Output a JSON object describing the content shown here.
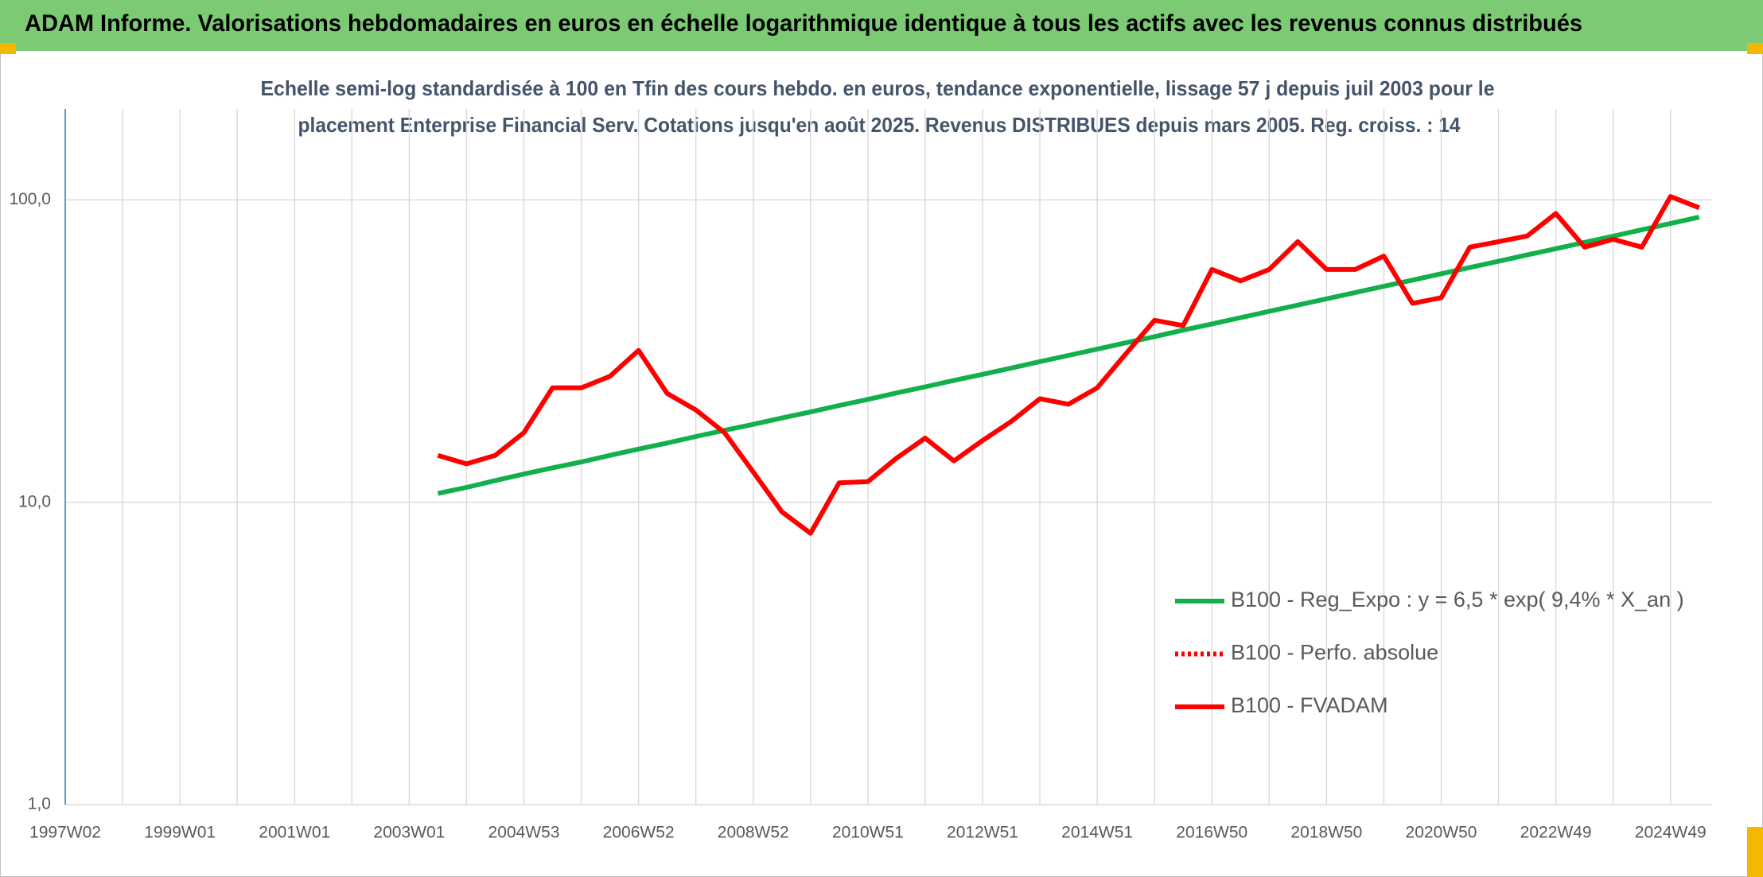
{
  "chart_data": {
    "type": "line",
    "title": "ADAM Informe. Valorisations hebdomadaires en euros en échelle logarithmique identique à tous les actifs avec les revenus connus distribués",
    "subtitle": [
      "Echelle semi-log standardisée à 100 en Tfin des cours hebdo. en euros, tendance exponentielle, lissage 57 j depuis juil 2003 pour le",
      "placement Enterprise Financial Serv. Cotations jusqu'en août 2025. Revenus DISTRIBUES depuis mars 2005. Reg. croiss. : 14"
    ],
    "categories": [
      "1997W02",
      null,
      null,
      null,
      "1999W01",
      null,
      null,
      null,
      "2001W01",
      null,
      null,
      null,
      "2003W01",
      null,
      null,
      null,
      "2004W53",
      null,
      null,
      null,
      "2006W52",
      null,
      null,
      null,
      "2008W52",
      null,
      null,
      null,
      "2010W51",
      null,
      null,
      null,
      "2012W51",
      null,
      null,
      null,
      "2014W51",
      null,
      null,
      null,
      "2016W50",
      null,
      null,
      null,
      "2018W50",
      null,
      null,
      null,
      "2020W50",
      null,
      null,
      null,
      "2022W49",
      null,
      null,
      null,
      "2024W49",
      null
    ],
    "ylim": [
      1,
      200
    ],
    "yticks": [
      {
        "value": 1,
        "label": "1,0"
      },
      {
        "value": 10,
        "label": "10,0"
      },
      {
        "value": 100,
        "label": "100,0"
      }
    ],
    "log_scale": true,
    "grid": true,
    "legend": "right",
    "series": [
      {
        "name": "B100 - Reg_Expo : y = 6,5 * exp( 9,4% *  X_an )",
        "color": "#12b04b",
        "style": "solid",
        "values": [
          null,
          null,
          null,
          null,
          null,
          null,
          null,
          null,
          null,
          null,
          null,
          null,
          null,
          10.7,
          11.2,
          11.8,
          12.4,
          13.0,
          13.6,
          14.3,
          15.0,
          15.7,
          16.5,
          17.3,
          18.1,
          19.0,
          19.9,
          20.9,
          21.9,
          23.0,
          24.1,
          25.3,
          26.5,
          27.8,
          29.2,
          30.6,
          32.1,
          33.7,
          35.3,
          37.1,
          38.9,
          40.8,
          42.8,
          44.9,
          47.1,
          49.4,
          51.8,
          54.3,
          57.0,
          59.8,
          62.7,
          65.8,
          69.0,
          72.4,
          75.9,
          79.7,
          83.6,
          87.7
        ]
      },
      {
        "name": "B100 - Perfo. absolue",
        "color": "#ff0000",
        "style": "dotted",
        "values": [
          null,
          null,
          null,
          null,
          null,
          null,
          null,
          null,
          null,
          null,
          null,
          null,
          null,
          null,
          null,
          null,
          null,
          null,
          null,
          null,
          null,
          null,
          null,
          null,
          null,
          null,
          null,
          null,
          null,
          null,
          null,
          null,
          null,
          null,
          null,
          null,
          null,
          null,
          null,
          null,
          null,
          null,
          null,
          null,
          null,
          null,
          null,
          null,
          null,
          null,
          null,
          null,
          null,
          null,
          null,
          null,
          null,
          null
        ]
      },
      {
        "name": "B100 - FVADAM",
        "color": "#ff0000",
        "style": "solid",
        "values": [
          null,
          null,
          null,
          null,
          null,
          null,
          null,
          null,
          null,
          null,
          null,
          null,
          null,
          14.3,
          13.4,
          14.3,
          17.0,
          23.9,
          23.9,
          26.1,
          31.8,
          22.9,
          20.2,
          17.0,
          12.6,
          9.3,
          7.9,
          11.6,
          11.7,
          14.0,
          16.3,
          13.7,
          16.0,
          18.5,
          22.0,
          21.1,
          23.9,
          31.0,
          40.0,
          38.4,
          58.9,
          54.0,
          58.9,
          72.8,
          58.9,
          58.9,
          65.2,
          45.5,
          47.5,
          69.8,
          72.8,
          76.0,
          90.2,
          69.8,
          74.1,
          69.8,
          102.6,
          94.2
        ]
      }
    ]
  }
}
